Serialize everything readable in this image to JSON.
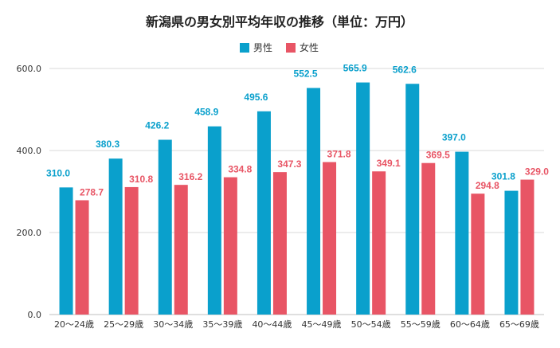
{
  "chart_data": {
    "type": "bar",
    "title": "新潟県の男女別平均年収の推移（単位：万円）",
    "categories": [
      "20～24歳",
      "25～29歳",
      "30～34歳",
      "35～39歳",
      "40～44歳",
      "45～49歳",
      "50～54歳",
      "55～59歳",
      "60～64歳",
      "65～69歳"
    ],
    "series": [
      {
        "name": "男性",
        "color": "#0aa0cc",
        "values": [
          310.0,
          380.3,
          426.2,
          458.9,
          495.6,
          552.5,
          565.9,
          562.6,
          397.0,
          301.8
        ]
      },
      {
        "name": "女性",
        "color": "#e85565",
        "values": [
          278.7,
          310.8,
          316.2,
          334.8,
          347.3,
          371.8,
          349.1,
          369.5,
          294.8,
          329.0
        ]
      }
    ],
    "yticks": [
      "0.0",
      "200.0",
      "400.0",
      "600.0"
    ],
    "ylim": [
      0,
      600
    ],
    "xlabel": "",
    "ylabel": "",
    "legend_position": "top-center",
    "grid": true
  }
}
